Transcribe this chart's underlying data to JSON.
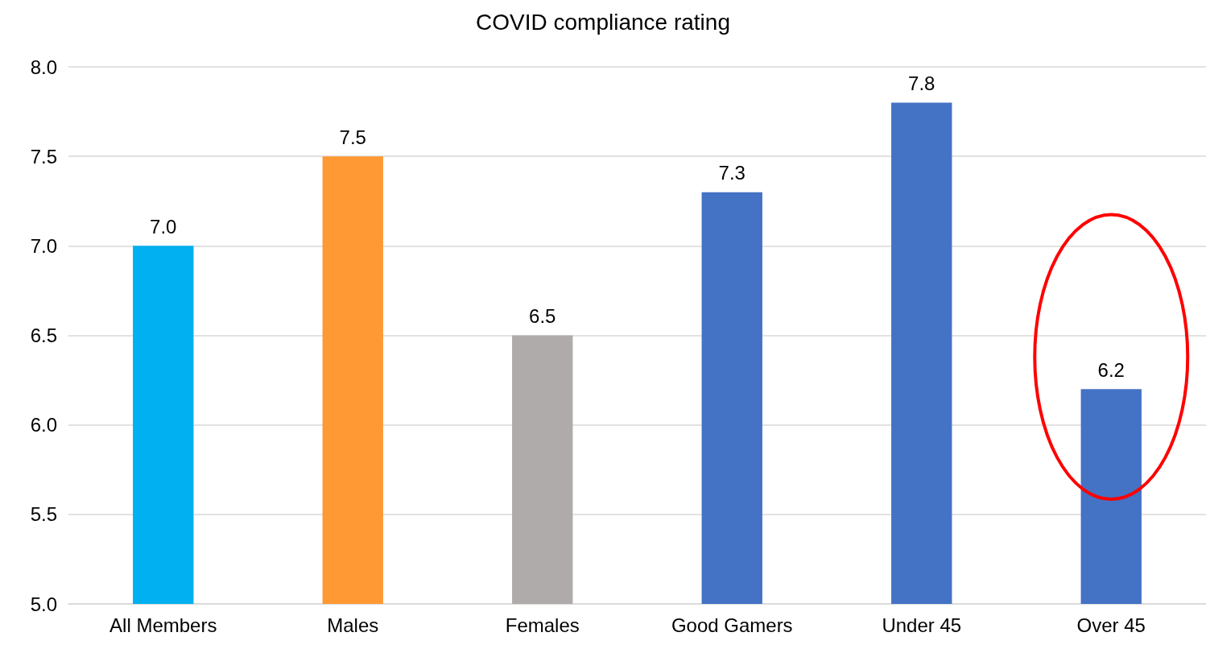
{
  "chart_data": {
    "type": "bar",
    "title": "COVID compliance rating",
    "categories": [
      "All Members",
      "Males",
      "Females",
      "Good Gamers",
      "Under 45",
      "Over 45"
    ],
    "values": [
      7.0,
      7.5,
      6.5,
      7.3,
      7.8,
      6.2
    ],
    "colors": [
      "#00b0f0",
      "#ff9933",
      "#afabab",
      "#4472c4",
      "#4472c4",
      "#4472c4"
    ],
    "value_labels": [
      "7.0",
      "7.5",
      "6.5",
      "7.3",
      "7.8",
      "6.2"
    ],
    "ylim": [
      5,
      8
    ],
    "yticks": [
      {
        "value": 5,
        "label": "5.0"
      },
      {
        "value": 5.5,
        "label": "5.5"
      },
      {
        "value": 6,
        "label": "6.0"
      },
      {
        "value": 6.5,
        "label": "6.5"
      },
      {
        "value": 7,
        "label": "7.0"
      },
      {
        "value": 7.5,
        "label": "7.5"
      },
      {
        "value": 8,
        "label": "8.0"
      }
    ],
    "grid": "y"
  }
}
